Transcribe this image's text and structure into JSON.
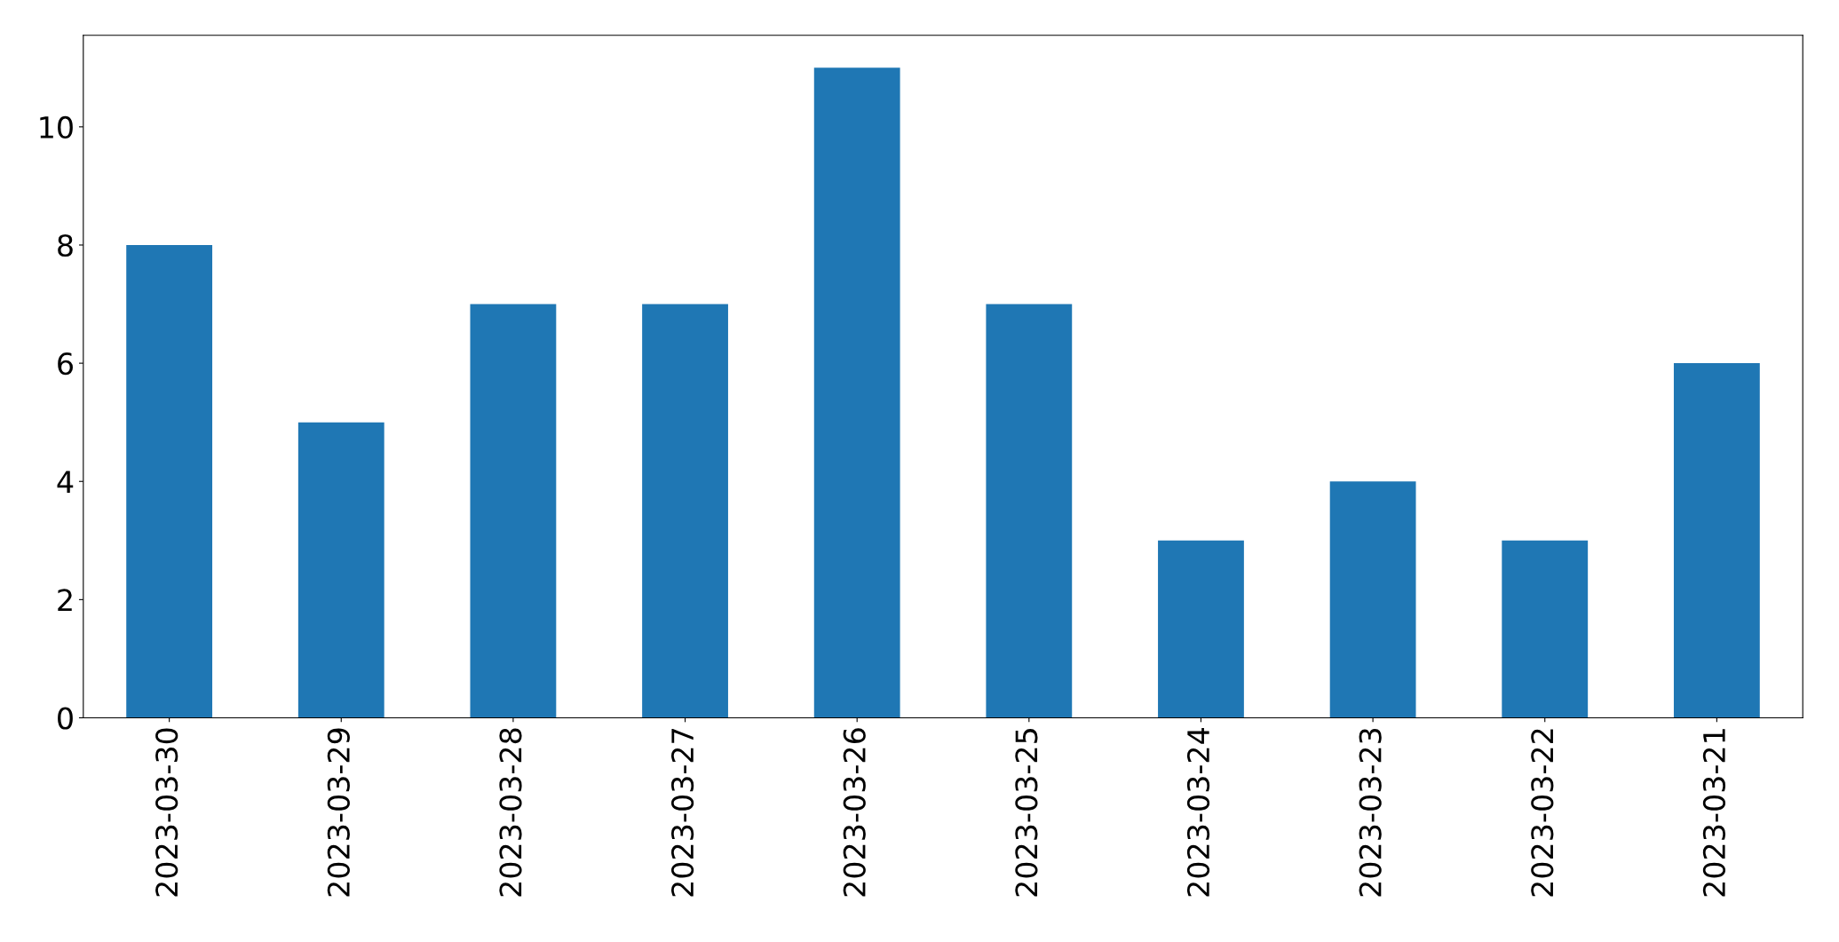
{
  "chart_data": {
    "type": "bar",
    "categories": [
      "2023-03-30",
      "2023-03-29",
      "2023-03-28",
      "2023-03-27",
      "2023-03-26",
      "2023-03-25",
      "2023-03-24",
      "2023-03-23",
      "2023-03-22",
      "2023-03-21"
    ],
    "values": [
      8,
      5,
      7,
      7,
      11,
      7,
      3,
      4,
      3,
      6
    ],
    "color": "#1f77b4",
    "ylim": [
      0,
      11.55
    ],
    "yticks": [
      0,
      2,
      4,
      6,
      8,
      10
    ],
    "grid": false,
    "legend": false
  }
}
